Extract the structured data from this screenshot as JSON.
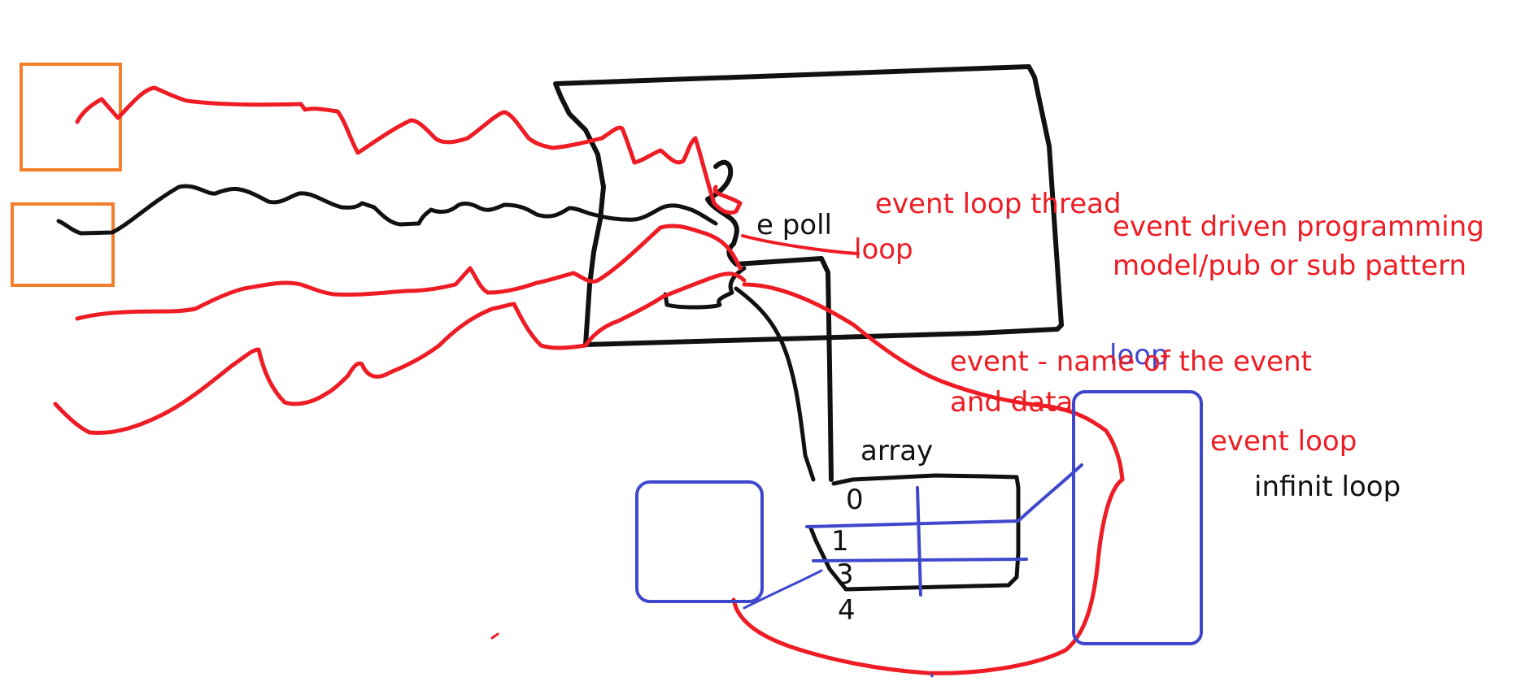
{
  "colors": {
    "red": "#ee1c24",
    "black": "#111111",
    "blue": "#3f48cc",
    "orange": "#f57e2a"
  },
  "labels": {
    "epoll": "e poll",
    "loop_red": "loop",
    "event_loop_thread": "event loop thread",
    "edp_line1": "event driven programming",
    "edp_line2": "model/pub or sub pattern",
    "loop_blue": "loop",
    "event_line1": "event - name of the event",
    "event_line2": "and data",
    "array": "array",
    "idx0": "0",
    "idx1": "1",
    "idx3": "3",
    "idx4": "4",
    "event_loop": "event loop",
    "infinit_loop": "infinit loop"
  }
}
